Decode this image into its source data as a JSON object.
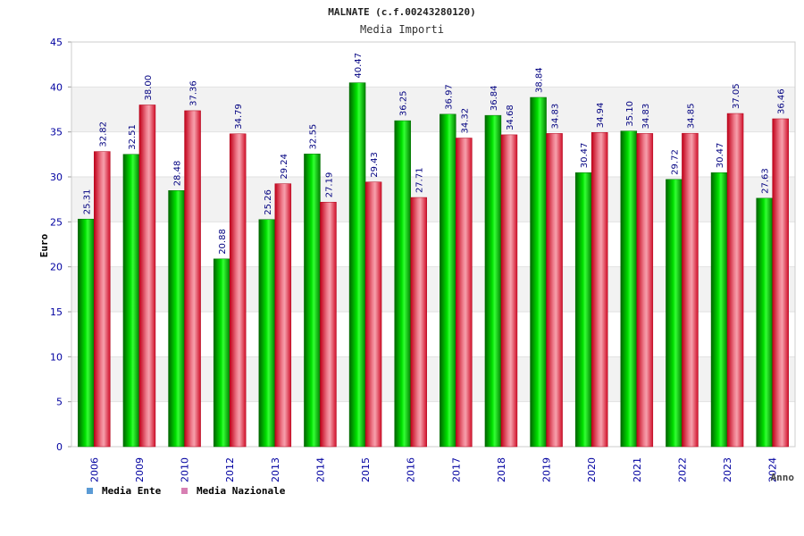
{
  "chart_data": {
    "type": "bar",
    "title": "MALNATE (c.f.00243280120)",
    "subtitle": "Media Importi",
    "xlabel": "Anno",
    "ylabel": "Euro",
    "ylim": [
      0,
      45
    ],
    "yticks": [
      "0",
      "5",
      "10",
      "15",
      "20",
      "25",
      "30",
      "35",
      "40",
      "45"
    ],
    "grid": true,
    "legend_position": "bottom-left",
    "categories": [
      "2006",
      "2009",
      "2010",
      "2012",
      "2013",
      "2014",
      "2015",
      "2016",
      "2017",
      "2018",
      "2019",
      "2020",
      "2021",
      "2022",
      "2023",
      "2024"
    ],
    "series": [
      {
        "name": "Media Ente",
        "color": "#00c000",
        "values": [
          25.31,
          32.51,
          28.48,
          20.88,
          25.26,
          32.55,
          40.47,
          36.25,
          36.97,
          36.84,
          38.84,
          30.47,
          35.1,
          29.72,
          30.47,
          27.63
        ],
        "labels": [
          "25.31",
          "32.51",
          "28.48",
          "20.88",
          "25.26",
          "32.55",
          "40.47",
          "36.25",
          "36.97",
          "36.84",
          "38.84",
          "30.47",
          "35.10",
          "29.72",
          "30.47",
          "27.63"
        ]
      },
      {
        "name": "Media Nazionale",
        "color": "#e8283c",
        "values": [
          32.82,
          38.0,
          37.36,
          34.79,
          29.24,
          27.19,
          29.43,
          27.71,
          34.32,
          34.68,
          34.83,
          34.94,
          34.83,
          34.85,
          37.05,
          36.46
        ],
        "labels": [
          "32.82",
          "38.00",
          "37.36",
          "34.79",
          "29.24",
          "27.19",
          "29.43",
          "27.71",
          "34.32",
          "34.68",
          "34.83",
          "34.94",
          "34.83",
          "34.85",
          "37.05",
          "36.46"
        ]
      }
    ]
  },
  "legend": [
    {
      "label": "Media Ente",
      "swatch_color": "#5b9bd5"
    },
    {
      "label": "Media Nazionale",
      "swatch_color": "#d77fb3"
    }
  ],
  "colors": {
    "axis_text": "#0000a0",
    "value_label": "#000080",
    "grid_band": "#f2f2f2",
    "title": "#222222"
  }
}
